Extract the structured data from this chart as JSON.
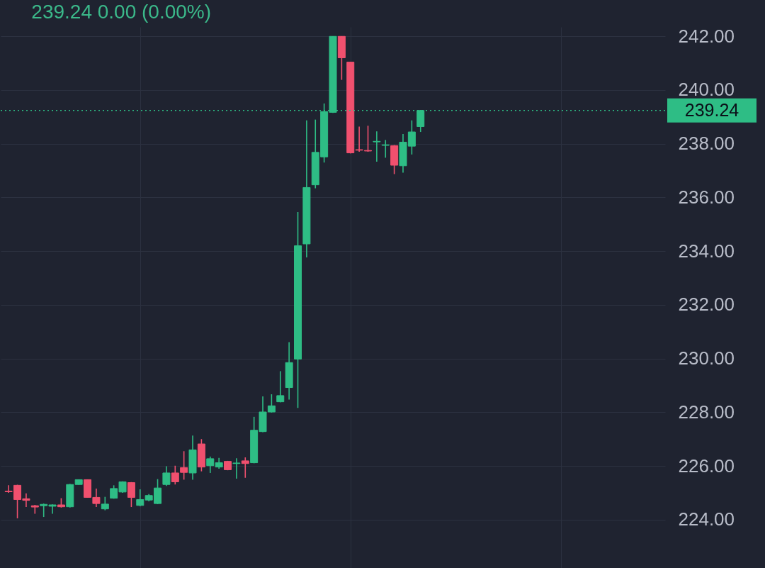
{
  "chart_data": {
    "type": "candlestick",
    "title": "239.24  0.00 (0.00%)",
    "categories": [
      null,
      null,
      null,
      null,
      null,
      null,
      null,
      null,
      null,
      null,
      null,
      null,
      null,
      null,
      null,
      null,
      null,
      null,
      null,
      null,
      null,
      null,
      null,
      null,
      null,
      null,
      null,
      null,
      null,
      null,
      null,
      null,
      null,
      null,
      null,
      null,
      null,
      null,
      null,
      null,
      null,
      null,
      null,
      null,
      null,
      null,
      null,
      null,
      null,
      null,
      null,
      null,
      null,
      null,
      null,
      null,
      null,
      null,
      null,
      null,
      null,
      null,
      null,
      null,
      null,
      null,
      null,
      null,
      null,
      null,
      null,
      null,
      null,
      null,
      null
    ],
    "ohlc": [
      [
        225.06,
        225.28,
        225.0,
        225.04
      ],
      [
        225.28,
        225.3,
        224.05,
        224.75
      ],
      [
        224.78,
        224.98,
        224.47,
        224.72
      ],
      [
        224.52,
        224.55,
        224.22,
        224.47
      ],
      [
        224.52,
        224.6,
        224.1,
        224.57
      ],
      [
        224.5,
        224.57,
        224.22,
        224.55
      ],
      [
        224.55,
        224.8,
        224.45,
        224.48
      ],
      [
        224.48,
        225.33,
        224.45,
        225.31
      ],
      [
        225.31,
        225.5,
        225.3,
        225.49
      ],
      [
        225.49,
        225.5,
        224.83,
        224.83
      ],
      [
        224.83,
        225.16,
        224.47,
        224.6
      ],
      [
        224.4,
        224.85,
        224.35,
        224.58
      ],
      [
        224.8,
        225.28,
        224.78,
        225.16
      ],
      [
        225.03,
        225.43,
        225.0,
        225.41
      ],
      [
        225.38,
        225.4,
        224.47,
        224.83
      ],
      [
        224.53,
        225.13,
        224.5,
        224.75
      ],
      [
        224.73,
        224.95,
        224.68,
        224.9
      ],
      [
        224.6,
        225.51,
        224.58,
        225.18
      ],
      [
        225.31,
        225.99,
        225.26,
        225.74
      ],
      [
        225.74,
        226.01,
        225.31,
        225.41
      ],
      [
        225.94,
        226.55,
        225.49,
        225.76
      ],
      [
        225.74,
        227.13,
        225.49,
        226.6
      ],
      [
        226.82,
        227.0,
        225.8,
        225.96
      ],
      [
        226.01,
        226.35,
        225.74,
        226.27
      ],
      [
        225.96,
        226.3,
        225.9,
        226.12
      ],
      [
        226.17,
        226.19,
        225.84,
        225.86
      ],
      [
        226.09,
        226.29,
        225.53,
        226.11
      ],
      [
        226.19,
        226.32,
        225.56,
        226.09
      ],
      [
        226.12,
        227.83,
        226.1,
        227.33
      ],
      [
        227.28,
        228.59,
        227.26,
        228.01
      ],
      [
        228.01,
        228.67,
        227.99,
        228.24
      ],
      [
        228.39,
        229.53,
        228.37,
        228.62
      ],
      [
        228.92,
        230.61,
        228.47,
        229.85
      ],
      [
        229.98,
        235.46,
        228.16,
        234.2
      ],
      [
        234.27,
        238.87,
        233.77,
        236.37
      ],
      [
        236.47,
        238.9,
        236.34,
        237.68
      ],
      [
        237.51,
        239.5,
        237.3,
        239.2
      ],
      [
        239.17,
        242.0,
        239.15,
        242.0
      ],
      [
        242.0,
        242.0,
        240.38,
        241.2
      ],
      [
        241.04,
        241.04,
        237.64,
        237.66
      ],
      [
        237.78,
        238.64,
        237.7,
        237.76
      ],
      [
        237.75,
        238.67,
        237.7,
        237.73
      ],
      [
        238.07,
        238.46,
        237.33,
        238.09
      ],
      [
        237.94,
        238.14,
        237.48,
        237.96
      ],
      [
        237.93,
        237.95,
        236.87,
        237.2
      ],
      [
        237.18,
        238.36,
        236.92,
        238.06
      ],
      [
        237.91,
        238.87,
        237.6,
        238.44
      ],
      [
        238.64,
        239.26,
        238.44,
        239.24
      ],
      null,
      null,
      null,
      null,
      null,
      null,
      null,
      null,
      null,
      null,
      null,
      null,
      null,
      null,
      null,
      null,
      null,
      null,
      null,
      null,
      null,
      null,
      null,
      null,
      null,
      null,
      null
    ],
    "colors": [
      "#f0506e",
      "#f0506e",
      "#f0506e",
      "#f0506e",
      "#2ebd85",
      "#2ebd85",
      "#f0506e",
      "#2ebd85",
      "#2ebd85",
      "#f0506e",
      "#f0506e",
      "#2ebd85",
      "#2ebd85",
      "#2ebd85",
      "#f0506e",
      "#2ebd85",
      "#2ebd85",
      "#2ebd85",
      "#2ebd85",
      "#f0506e",
      "#f0506e",
      "#2ebd85",
      "#f0506e",
      "#2ebd85",
      "#2ebd85",
      "#f0506e",
      "#2ebd85",
      "#f0506e",
      "#2ebd85",
      "#2ebd85",
      "#2ebd85",
      "#2ebd85",
      "#2ebd85",
      "#2ebd85",
      "#2ebd85",
      "#2ebd85",
      "#2ebd85",
      "#2ebd85",
      "#f0506e",
      "#f0506e",
      "#f0506e",
      "#f0506e",
      "#2ebd85",
      "#2ebd85",
      "#f0506e",
      "#2ebd85",
      "#2ebd85",
      "#2ebd85",
      null,
      null,
      null,
      null,
      null,
      null,
      null,
      null,
      null,
      null,
      null,
      null,
      null,
      null,
      null,
      null,
      null,
      null,
      null,
      null,
      null,
      null,
      null,
      null,
      null,
      null,
      null
    ],
    "ylim": [
      222.2,
      242.35
    ],
    "yticks": [
      {
        "value": 224,
        "label": "224.00"
      },
      {
        "value": 226,
        "label": "226.00"
      },
      {
        "value": 228,
        "label": "228.00"
      },
      {
        "value": 230,
        "label": "230.00"
      },
      {
        "value": 232,
        "label": "232.00"
      },
      {
        "value": 234,
        "label": "234.00"
      },
      {
        "value": 236,
        "label": "236.00"
      },
      {
        "value": 238,
        "label": "238.00"
      },
      {
        "value": 240,
        "label": "240.00"
      },
      {
        "value": 242,
        "label": "242.00"
      }
    ],
    "ref_lines": [
      {
        "axis": "y",
        "value": 239.24,
        "label": "239.24",
        "color": "#2ebd85",
        "line_style": "dotted"
      }
    ],
    "grid": true,
    "tick_labels": "y"
  }
}
